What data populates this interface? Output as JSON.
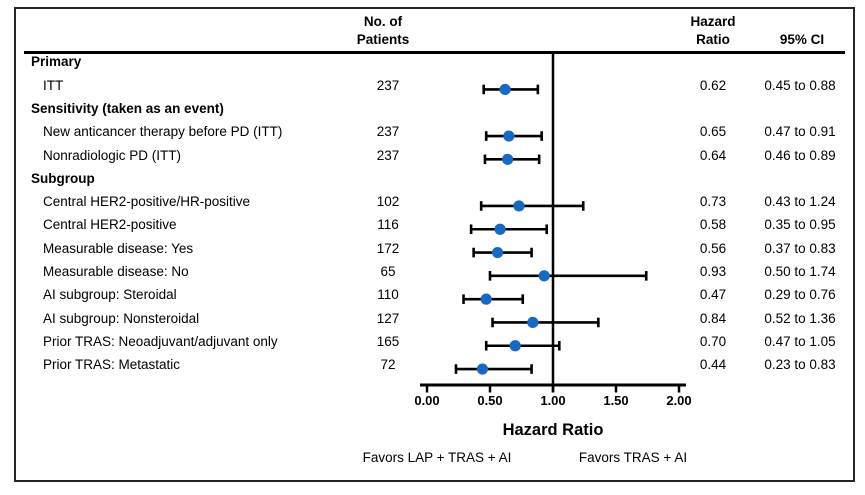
{
  "header": {
    "patients_col": [
      "No. of",
      "Patients"
    ],
    "hr_col": [
      "Hazard",
      "Ratio"
    ],
    "ci_col": "95% CI"
  },
  "chart_data": {
    "type": "forest",
    "x_axis": {
      "title": "Hazard Ratio",
      "tick_labels": [
        "0.00",
        "0.50",
        "1.00",
        "1.50",
        "2.00"
      ],
      "tick_values": [
        0,
        0.5,
        1,
        1.5,
        2
      ],
      "xlim": [
        0,
        2
      ],
      "reference_line": 1.0
    },
    "footers": {
      "favors_left": "Favors LAP + TRAS + AI",
      "favors_right": "Favors TRAS + AI"
    },
    "colors": {
      "marker": "#1a69c0",
      "line": "#000000"
    },
    "rows": [
      {
        "kind": "section",
        "label": "Primary"
      },
      {
        "kind": "item",
        "label": "ITT",
        "patients": "237",
        "hr": 0.62,
        "ci_low": 0.45,
        "ci_high": 0.88,
        "hr_label": "0.62",
        "ci_label": "0.45 to 0.88"
      },
      {
        "kind": "section",
        "label": "Sensitivity (taken as an event)"
      },
      {
        "kind": "item",
        "label": "New anticancer therapy before PD (ITT)",
        "patients": "237",
        "hr": 0.65,
        "ci_low": 0.47,
        "ci_high": 0.91,
        "hr_label": "0.65",
        "ci_label": "0.47 to 0.91"
      },
      {
        "kind": "item",
        "label": "Nonradiologic PD (ITT)",
        "patients": "237",
        "hr": 0.64,
        "ci_low": 0.46,
        "ci_high": 0.89,
        "hr_label": "0.64",
        "ci_label": "0.46 to 0.89"
      },
      {
        "kind": "section",
        "label": "Subgroup"
      },
      {
        "kind": "item",
        "label": "Central HER2-positive/HR-positive",
        "patients": "102",
        "hr": 0.73,
        "ci_low": 0.43,
        "ci_high": 1.24,
        "hr_label": "0.73",
        "ci_label": "0.43 to 1.24"
      },
      {
        "kind": "item",
        "label": "Central HER2-positive",
        "patients": "116",
        "hr": 0.58,
        "ci_low": 0.35,
        "ci_high": 0.95,
        "hr_label": "0.58",
        "ci_label": "0.35 to 0.95"
      },
      {
        "kind": "item",
        "label": "Measurable disease: Yes",
        "patients": "172",
        "hr": 0.56,
        "ci_low": 0.37,
        "ci_high": 0.83,
        "hr_label": "0.56",
        "ci_label": "0.37 to 0.83"
      },
      {
        "kind": "item",
        "label": "Measurable disease: No",
        "patients": "65",
        "hr": 0.93,
        "ci_low": 0.5,
        "ci_high": 1.74,
        "hr_label": "0.93",
        "ci_label": "0.50 to 1.74"
      },
      {
        "kind": "item",
        "label": "AI subgroup: Steroidal",
        "patients": "110",
        "hr": 0.47,
        "ci_low": 0.29,
        "ci_high": 0.76,
        "hr_label": "0.47",
        "ci_label": "0.29 to 0.76"
      },
      {
        "kind": "item",
        "label": "AI subgroup: Nonsteroidal",
        "patients": "127",
        "hr": 0.84,
        "ci_low": 0.52,
        "ci_high": 1.36,
        "hr_label": "0.84",
        "ci_label": "0.52 to 1.36"
      },
      {
        "kind": "item",
        "label": "Prior TRAS: Neoadjuvant/adjuvant only",
        "patients": "165",
        "hr": 0.7,
        "ci_low": 0.47,
        "ci_high": 1.05,
        "hr_label": "0.70",
        "ci_label": "0.47 to 1.05"
      },
      {
        "kind": "item",
        "label": "Prior TRAS: Metastatic",
        "patients": "72",
        "hr": 0.44,
        "ci_low": 0.23,
        "ci_high": 0.83,
        "hr_label": "0.44",
        "ci_label": "0.23 to 0.83"
      }
    ]
  }
}
